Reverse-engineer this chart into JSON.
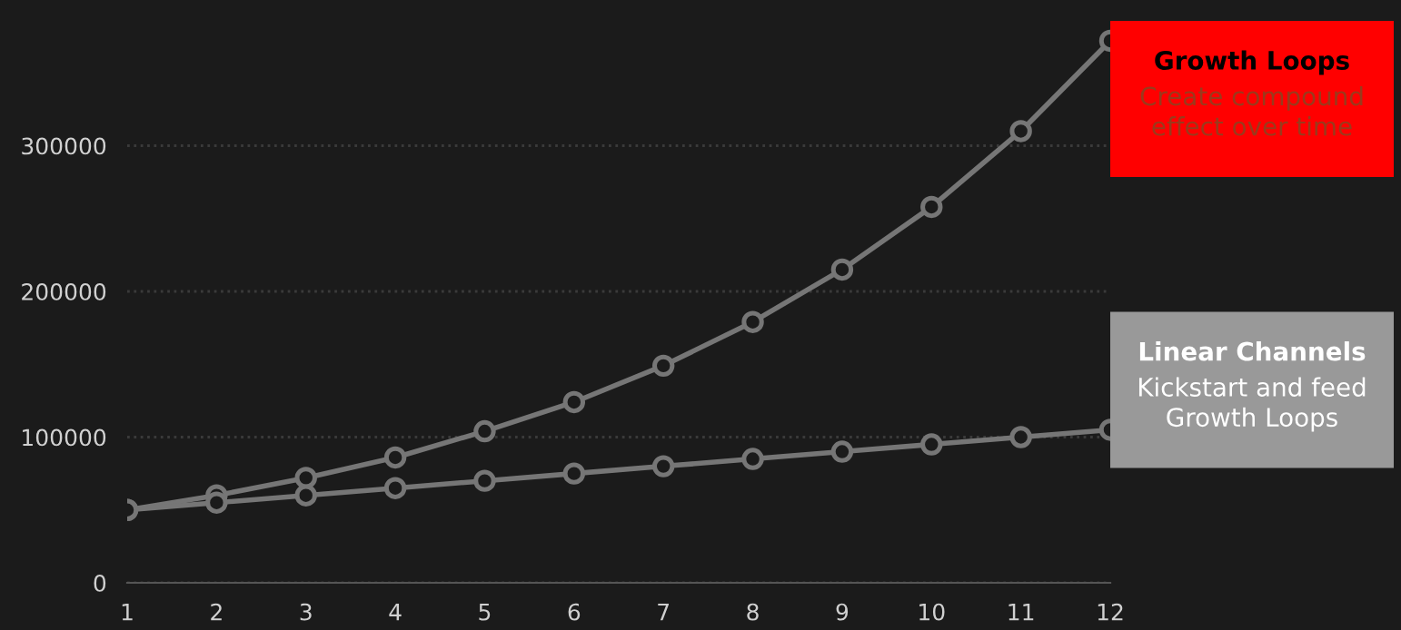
{
  "chart_data": {
    "type": "line",
    "x": [
      1,
      2,
      3,
      4,
      5,
      6,
      7,
      8,
      9,
      10,
      11,
      12
    ],
    "series": [
      {
        "color": "#767676",
        "values": [
          50000,
          60000,
          72000,
          86000,
          104000,
          124000,
          149000,
          179000,
          215000,
          258000,
          310000,
          372000
        ]
      },
      {
        "color": "#767676",
        "values": [
          50000,
          55000,
          60000,
          65000,
          70000,
          75000,
          80000,
          85000,
          90000,
          95000,
          100000,
          105000
        ]
      }
    ],
    "xlim": [
      1,
      12
    ],
    "xticks": [
      1,
      2,
      3,
      4,
      5,
      6,
      7,
      8,
      9,
      10,
      11,
      12
    ],
    "ylim": [
      0,
      400000
    ],
    "yticks": [
      0,
      100000,
      200000,
      300000
    ],
    "grid": "y",
    "marker": "circle",
    "line_style": "solid",
    "annotations": [
      {
        "text": "Growth Loops\nCreate compound\neffect over time",
        "x": 12,
        "y": 372000
      },
      {
        "text": "Linear Channels\nKickstart and feed\nGrowth Loops",
        "x": 12,
        "y": 105000
      }
    ]
  }
}
